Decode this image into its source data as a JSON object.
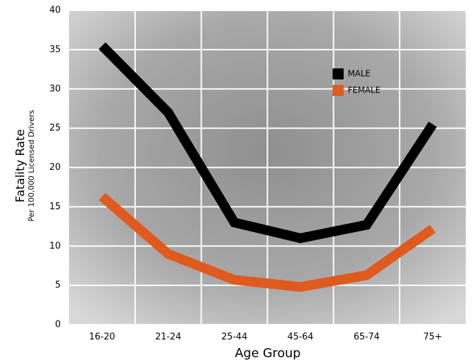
{
  "chart_data": {
    "type": "line",
    "y_label": "Fatality Rate",
    "y_sublabel": "Per 100,000 Licensed Drivers",
    "x_label": "Age Group",
    "categories": [
      "16-20",
      "21-24",
      "25-44",
      "45-64",
      "65-74",
      "75+"
    ],
    "series": [
      {
        "name": "MALE",
        "color": "#000000",
        "values": [
          35.5,
          27,
          13,
          11,
          12.7,
          25.5
        ]
      },
      {
        "name": "FEMALE",
        "color": "#e05a1e",
        "values": [
          16.3,
          9,
          5.7,
          4.8,
          6.3,
          12.2
        ]
      }
    ],
    "ylim": [
      0,
      40
    ],
    "yticks": [
      0,
      5,
      10,
      15,
      20,
      25,
      30,
      35,
      40
    ],
    "grid": true
  }
}
